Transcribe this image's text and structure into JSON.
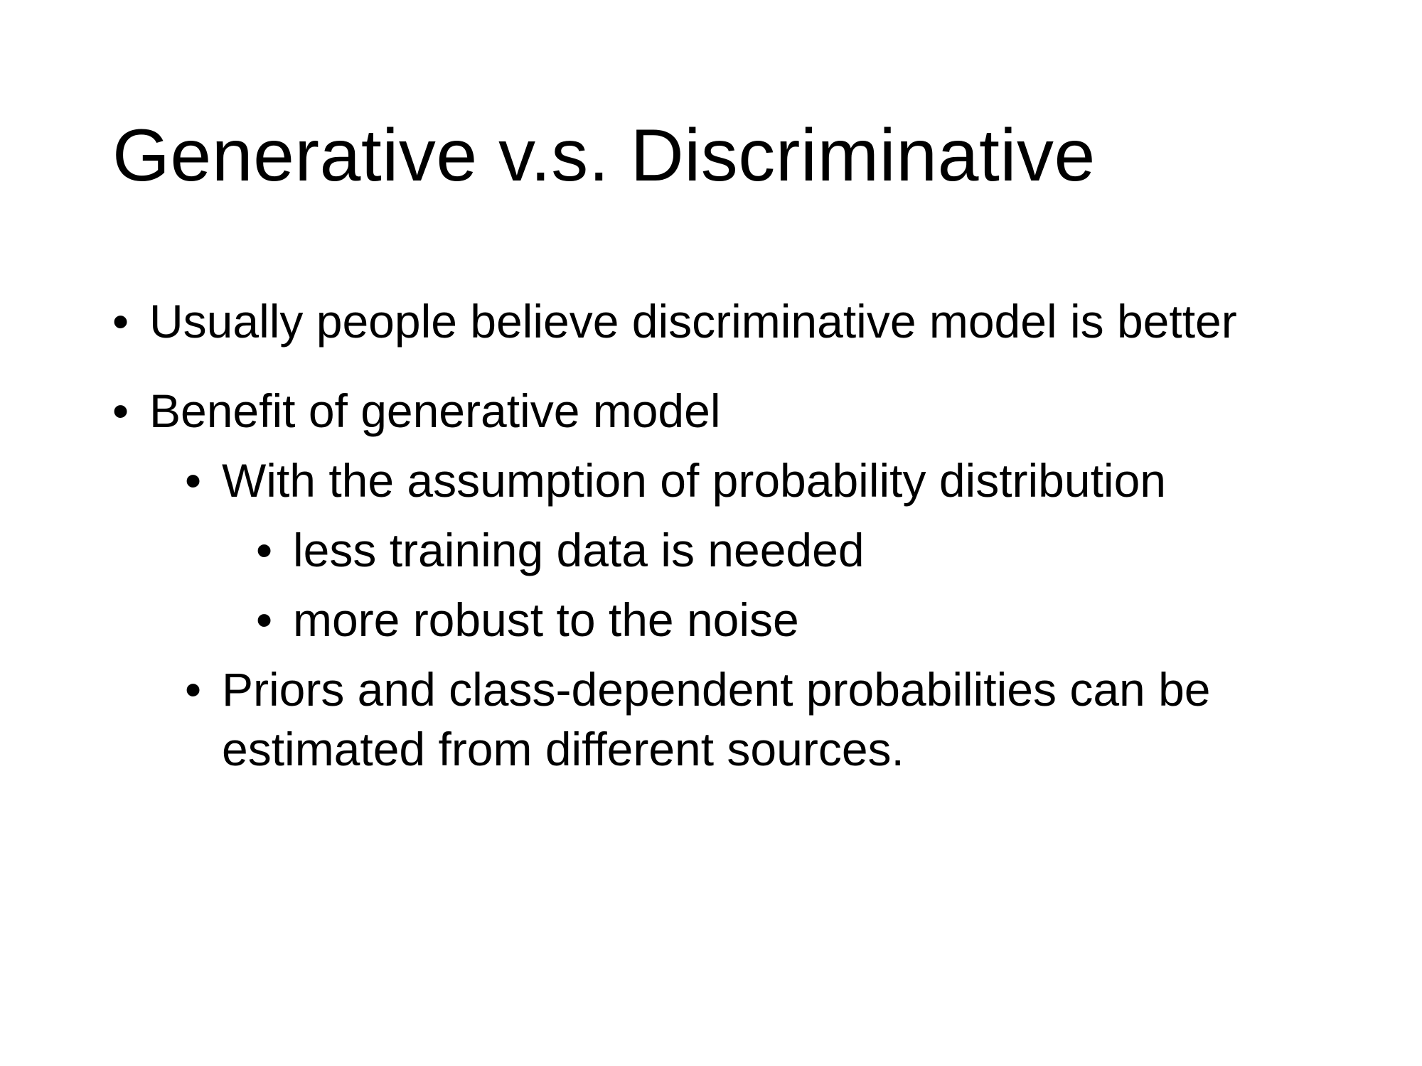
{
  "slide": {
    "title": "Generative v.s. Discriminative",
    "bullet_glyph": "•",
    "bullets": [
      {
        "level": 1,
        "text": "Usually people believe discriminative model is better"
      },
      {
        "level": 1,
        "text": "Benefit of generative model"
      },
      {
        "level": 2,
        "text": "With the assumption of probability distribution"
      },
      {
        "level": 3,
        "text": "less training data is needed"
      },
      {
        "level": 3,
        "text": "more robust to the noise"
      },
      {
        "level": 2,
        "text": "Priors and class-dependent probabilities can be estimated from different sources."
      }
    ]
  }
}
